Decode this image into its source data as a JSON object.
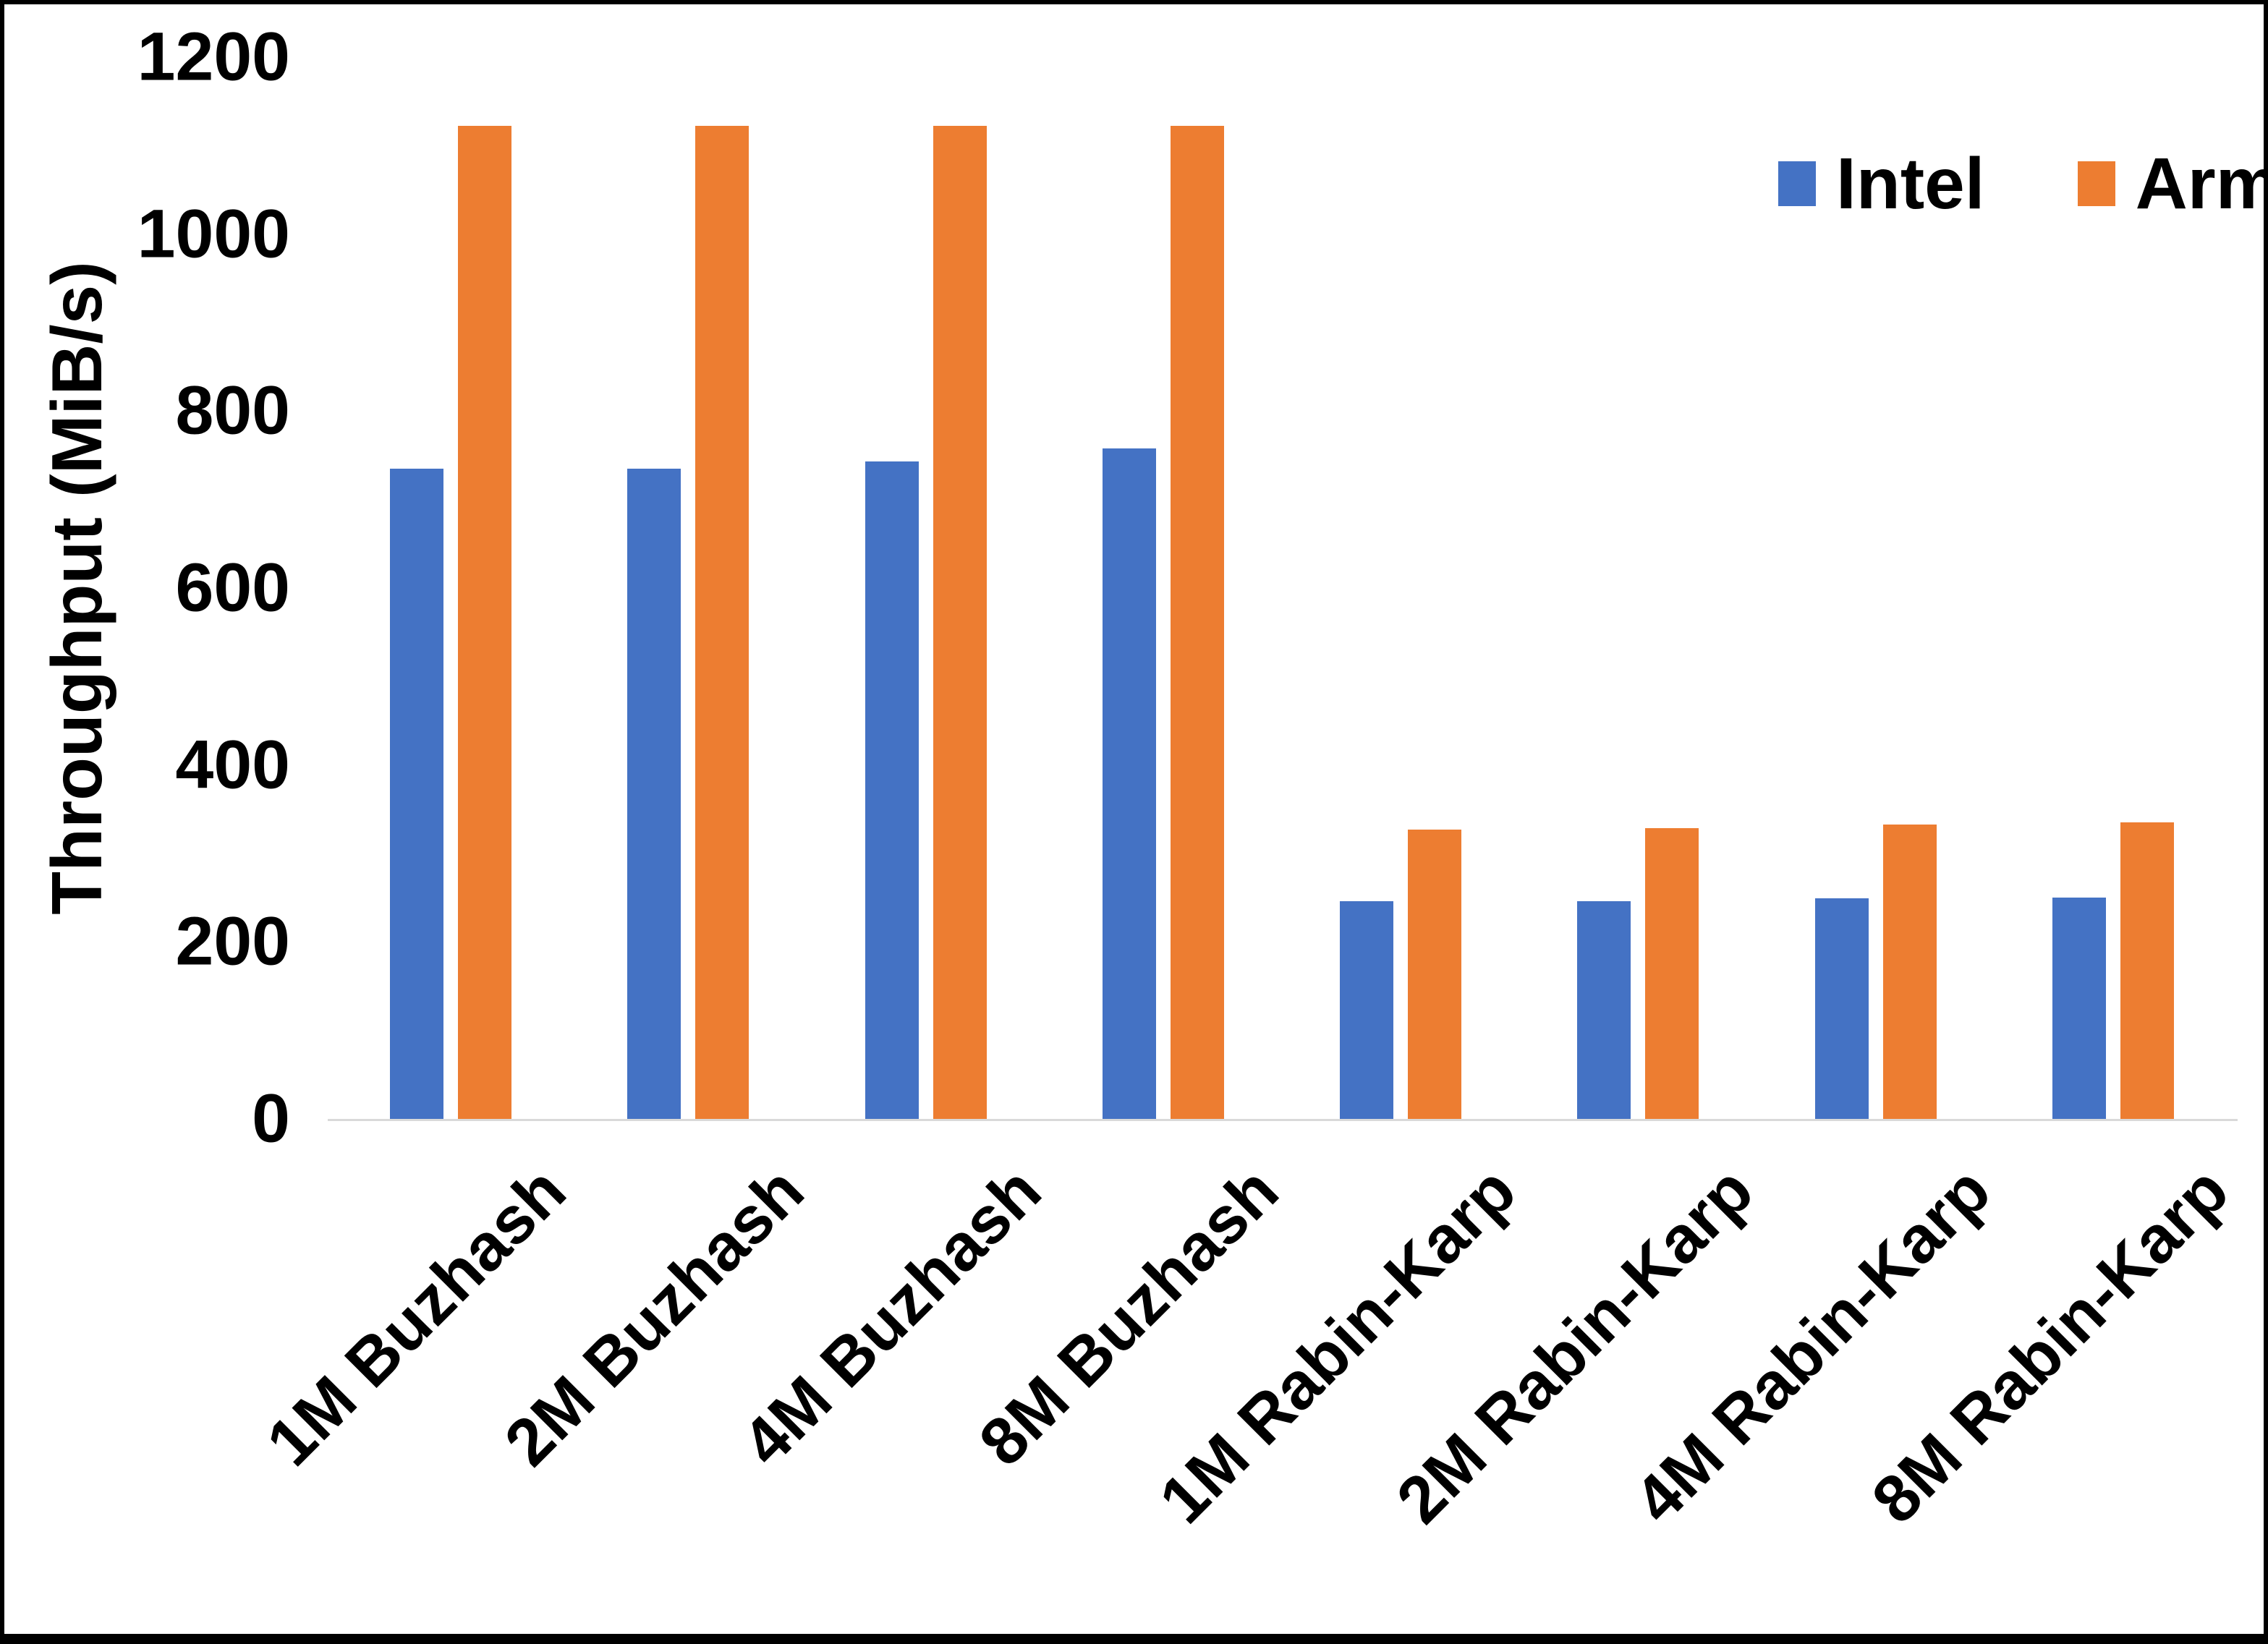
{
  "chart_data": {
    "type": "bar",
    "title": "",
    "xlabel": "",
    "ylabel": "Throughput (MiB/s)",
    "ylim": [
      0,
      1200
    ],
    "yticks": [
      0,
      200,
      400,
      600,
      800,
      1000,
      1200
    ],
    "grid": false,
    "legend_position": "top-right",
    "categories": [
      "1M Buzhash",
      "2M Buzhash",
      "4M Buzhash",
      "8M Buzhash",
      "1M Rabin-Karp",
      "2M Rabin-Karp",
      "4M Rabin-Karp",
      "8M Rabin-Karp"
    ],
    "series": [
      {
        "name": "Intel",
        "color": "#4472C4",
        "values": [
          735,
          735,
          743,
          758,
          246,
          246,
          249,
          250
        ]
      },
      {
        "name": "Arm",
        "color": "#ED7D31",
        "values": [
          1122,
          1122,
          1122,
          1122,
          327,
          329,
          333,
          335
        ]
      }
    ]
  },
  "colors": {
    "axis_line": "#D9D9D9",
    "text": "#000000",
    "frame": "#000000",
    "background": "#FFFFFF"
  }
}
